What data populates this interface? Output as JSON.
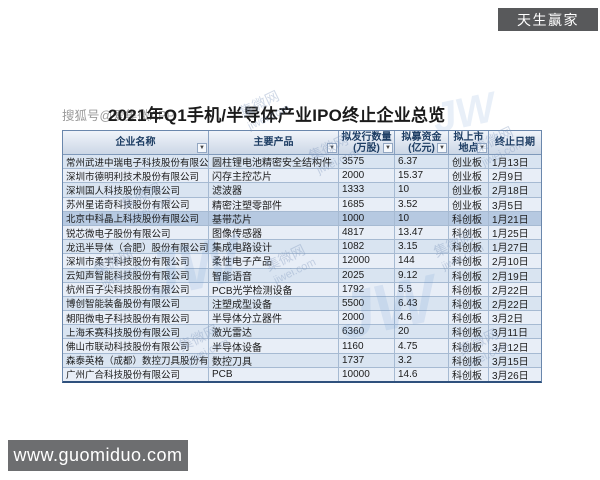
{
  "page": {
    "top_badge": "天生赢家",
    "bottom_badge": "www.guomiduo.com"
  },
  "title": {
    "watermark": "搜狐号@爱集微APP",
    "text": "2021年Q1手机/半导体产业IPO终止企业总览"
  },
  "watermarks": {
    "brand": "集微网",
    "site": "jiwei.com",
    "logo": "JW"
  },
  "colors": {
    "badge_gray": "#58595b",
    "header_navy": "#1d3d63",
    "row_blue": "#d9e4f1",
    "row_alt_blue": "#e8eef7",
    "row_highlight": "#b6c9e1",
    "grid_line": "#a6bad2"
  },
  "table": {
    "headers": [
      {
        "line1": "企业名称",
        "line2": ""
      },
      {
        "line1": "主要产品",
        "line2": ""
      },
      {
        "line1": "拟发行数量",
        "line2": "(万股)"
      },
      {
        "line1": "拟募资金",
        "line2": "(亿元)"
      },
      {
        "line1": "拟上市",
        "line2": "地点"
      },
      {
        "line1": "终止日期",
        "line2": ""
      }
    ],
    "rows": [
      {
        "company": "常州武进中瑞电子科技股份有限公司",
        "product": "圆柱锂电池精密安全结构件",
        "shares": 3575,
        "capital": 6.37,
        "board": "创业板",
        "date": "1月13日"
      },
      {
        "company": "深圳市德明利技术股份有限公司",
        "product": "闪存主控芯片",
        "shares": 2000,
        "capital": 15.37,
        "board": "创业板",
        "date": "2月9日"
      },
      {
        "company": "深圳国人科技股份有限公司",
        "product": "滤波器",
        "shares": 1333,
        "capital": 10,
        "board": "创业板",
        "date": "2月18日"
      },
      {
        "company": "苏州星诺奇科技股份有限公司",
        "product": "精密注塑零部件",
        "shares": 1685,
        "capital": 3.52,
        "board": "创业板",
        "date": "3月5日"
      },
      {
        "company": "北京中科晶上科技股份有限公司",
        "product": "基带芯片",
        "shares": 1000,
        "capital": 10,
        "board": "科创板",
        "date": "1月21日",
        "highlight": true
      },
      {
        "company": "锐芯微电子股份有限公司",
        "product": "图像传感器",
        "shares": 4817,
        "capital": 13.47,
        "board": "科创板",
        "date": "1月25日"
      },
      {
        "company": "龙迅半导体（合肥）股份有限公司",
        "product": "集成电路设计",
        "shares": 1082,
        "capital": 3.15,
        "board": "科创板",
        "date": "1月27日"
      },
      {
        "company": "深圳市柔宇科技股份有限公司",
        "product": "柔性电子产品",
        "shares": 12000,
        "capital": 144,
        "board": "科创板",
        "date": "2月10日"
      },
      {
        "company": "云知声智能科技股份有限公司",
        "product": "智能语音",
        "shares": 2025,
        "capital": 9.12,
        "board": "科创板",
        "date": "2月19日"
      },
      {
        "company": "杭州百子尖科技股份有限公司",
        "product": "PCB光学检测设备",
        "shares": 1792,
        "capital": 5.5,
        "board": "科创板",
        "date": "2月22日"
      },
      {
        "company": "博创智能装备股份有限公司",
        "product": "注塑成型设备",
        "shares": 5500,
        "capital": 6.43,
        "board": "科创板",
        "date": "2月22日"
      },
      {
        "company": "朝阳微电子科技股份有限公司",
        "product": "半导体分立器件",
        "shares": 2000,
        "capital": 4.6,
        "board": "科创板",
        "date": "3月2日"
      },
      {
        "company": "上海禾赛科技股份有限公司",
        "product": "激光雷达",
        "shares": 6360,
        "capital": 20,
        "board": "科创板",
        "date": "3月11日"
      },
      {
        "company": "佛山市联动科技股份有限公司",
        "product": "半导体设备",
        "shares": 1160,
        "capital": 4.75,
        "board": "科创板",
        "date": "3月12日"
      },
      {
        "company": "森泰英格（成都）数控刀具股份有限公司",
        "product": "数控刀具",
        "shares": 1737,
        "capital": 3.2,
        "board": "科创板",
        "date": "3月15日"
      },
      {
        "company": "广州广合科技股份有限公司",
        "product": "PCB",
        "shares": 10000,
        "capital": 14.6,
        "board": "科创板",
        "date": "3月26日"
      }
    ]
  }
}
